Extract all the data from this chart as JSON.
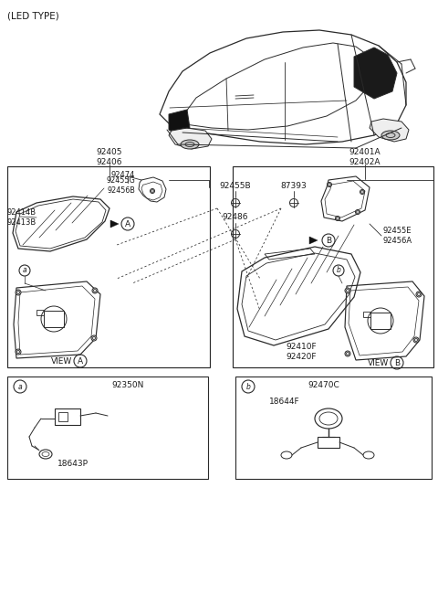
{
  "bg_color": "#ffffff",
  "line_color": "#2a2a2a",
  "text_color": "#1a1a1a",
  "labels": {
    "led_type": "(LED TYPE)",
    "92405_92406": "92405\n92406",
    "92474": "92474",
    "92455G_92456B": "92455G\n92456B",
    "92414B_92413B": "92414B\n92413B",
    "92455B": "92455B",
    "87393": "87393",
    "92486": "92486",
    "92401A_92402A": "92401A\n92402A",
    "92455E_92456A": "92455E\n92456A",
    "92410F_92420F": "92410F\n92420F",
    "92350N": "92350N",
    "18643P": "18643P",
    "92470C": "92470C",
    "18644F": "18644F"
  }
}
